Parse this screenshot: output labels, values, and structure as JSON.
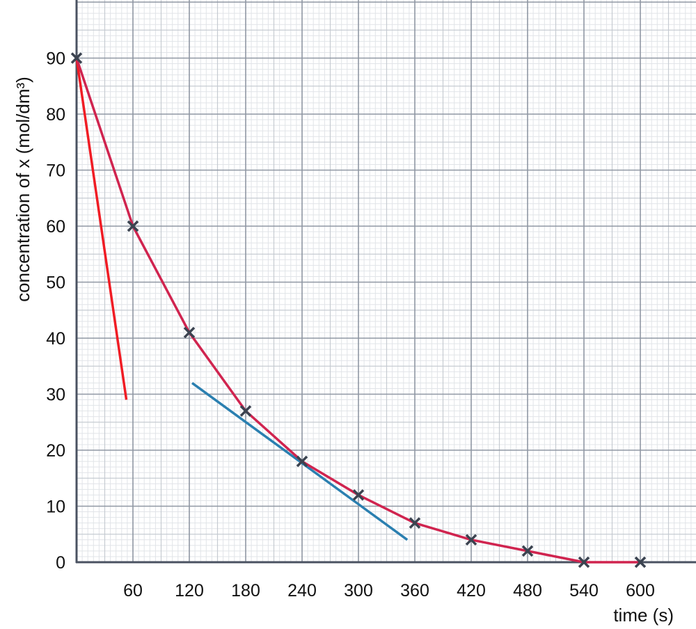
{
  "chart_data": {
    "type": "line",
    "title": "",
    "xlabel": "time (s)",
    "ylabel": "concentration of x (mol/dm³)",
    "xlim": [
      0,
      660
    ],
    "ylim": [
      0,
      90
    ],
    "x_ticks": [
      "60",
      "120",
      "180",
      "240",
      "300",
      "360",
      "420",
      "480",
      "540",
      "600"
    ],
    "y_ticks": [
      "0",
      "10",
      "20",
      "30",
      "40",
      "50",
      "60",
      "70",
      "80",
      "90"
    ],
    "grid": true,
    "series": [
      {
        "x": [
          0,
          60,
          120,
          180,
          240,
          300,
          360,
          420,
          480,
          540,
          600
        ],
        "y": [
          90,
          60,
          41,
          27,
          18,
          12,
          7,
          4,
          2,
          0,
          0
        ],
        "color": "#d0244f",
        "marker": "x"
      }
    ],
    "tangents": [
      {
        "x": [
          0,
          53
        ],
        "y": [
          90,
          29
        ],
        "color": "#f01c24"
      },
      {
        "x": [
          123,
          352
        ],
        "y": [
          32,
          4
        ],
        "color": "#2a7fb0"
      }
    ]
  }
}
